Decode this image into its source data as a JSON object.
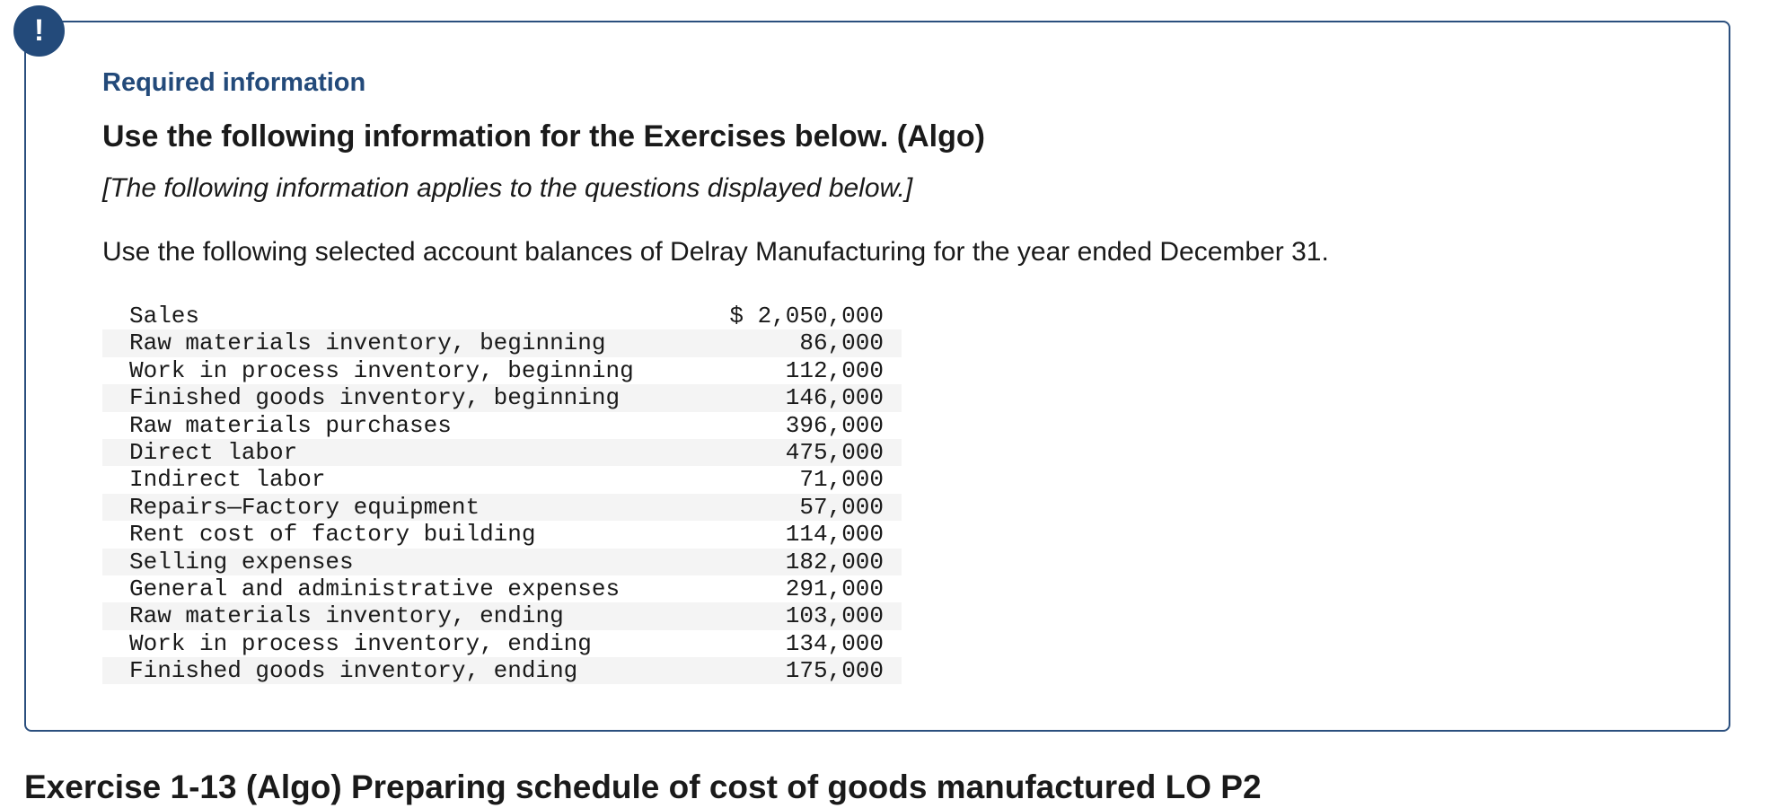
{
  "header": {
    "badge": "!",
    "label": "Required information",
    "title": "Use the following information for the Exercises below. (Algo)",
    "note": "[The following information applies to the questions displayed below.]",
    "intro": "Use the following selected account balances of Delray Manufacturing for the year ended December 31."
  },
  "table": {
    "rows": [
      [
        "Sales",
        "$ 2,050,000"
      ],
      [
        "Raw materials inventory, beginning",
        "86,000"
      ],
      [
        "Work in process inventory, beginning",
        "112,000"
      ],
      [
        "Finished goods inventory, beginning",
        "146,000"
      ],
      [
        "Raw materials purchases",
        "396,000"
      ],
      [
        "Direct labor",
        "475,000"
      ],
      [
        "Indirect labor",
        "71,000"
      ],
      [
        "Repairs—Factory equipment",
        "57,000"
      ],
      [
        "Rent cost of factory building",
        "114,000"
      ],
      [
        "Selling expenses",
        "182,000"
      ],
      [
        "General and administrative expenses",
        "291,000"
      ],
      [
        "Raw materials inventory, ending",
        "103,000"
      ],
      [
        "Work in process inventory, ending",
        "134,000"
      ],
      [
        "Finished goods inventory, ending",
        "175,000"
      ]
    ]
  },
  "exercise": {
    "title": "Exercise 1-13 (Algo) Preparing schedule of cost of goods manufactured LO P2"
  }
}
